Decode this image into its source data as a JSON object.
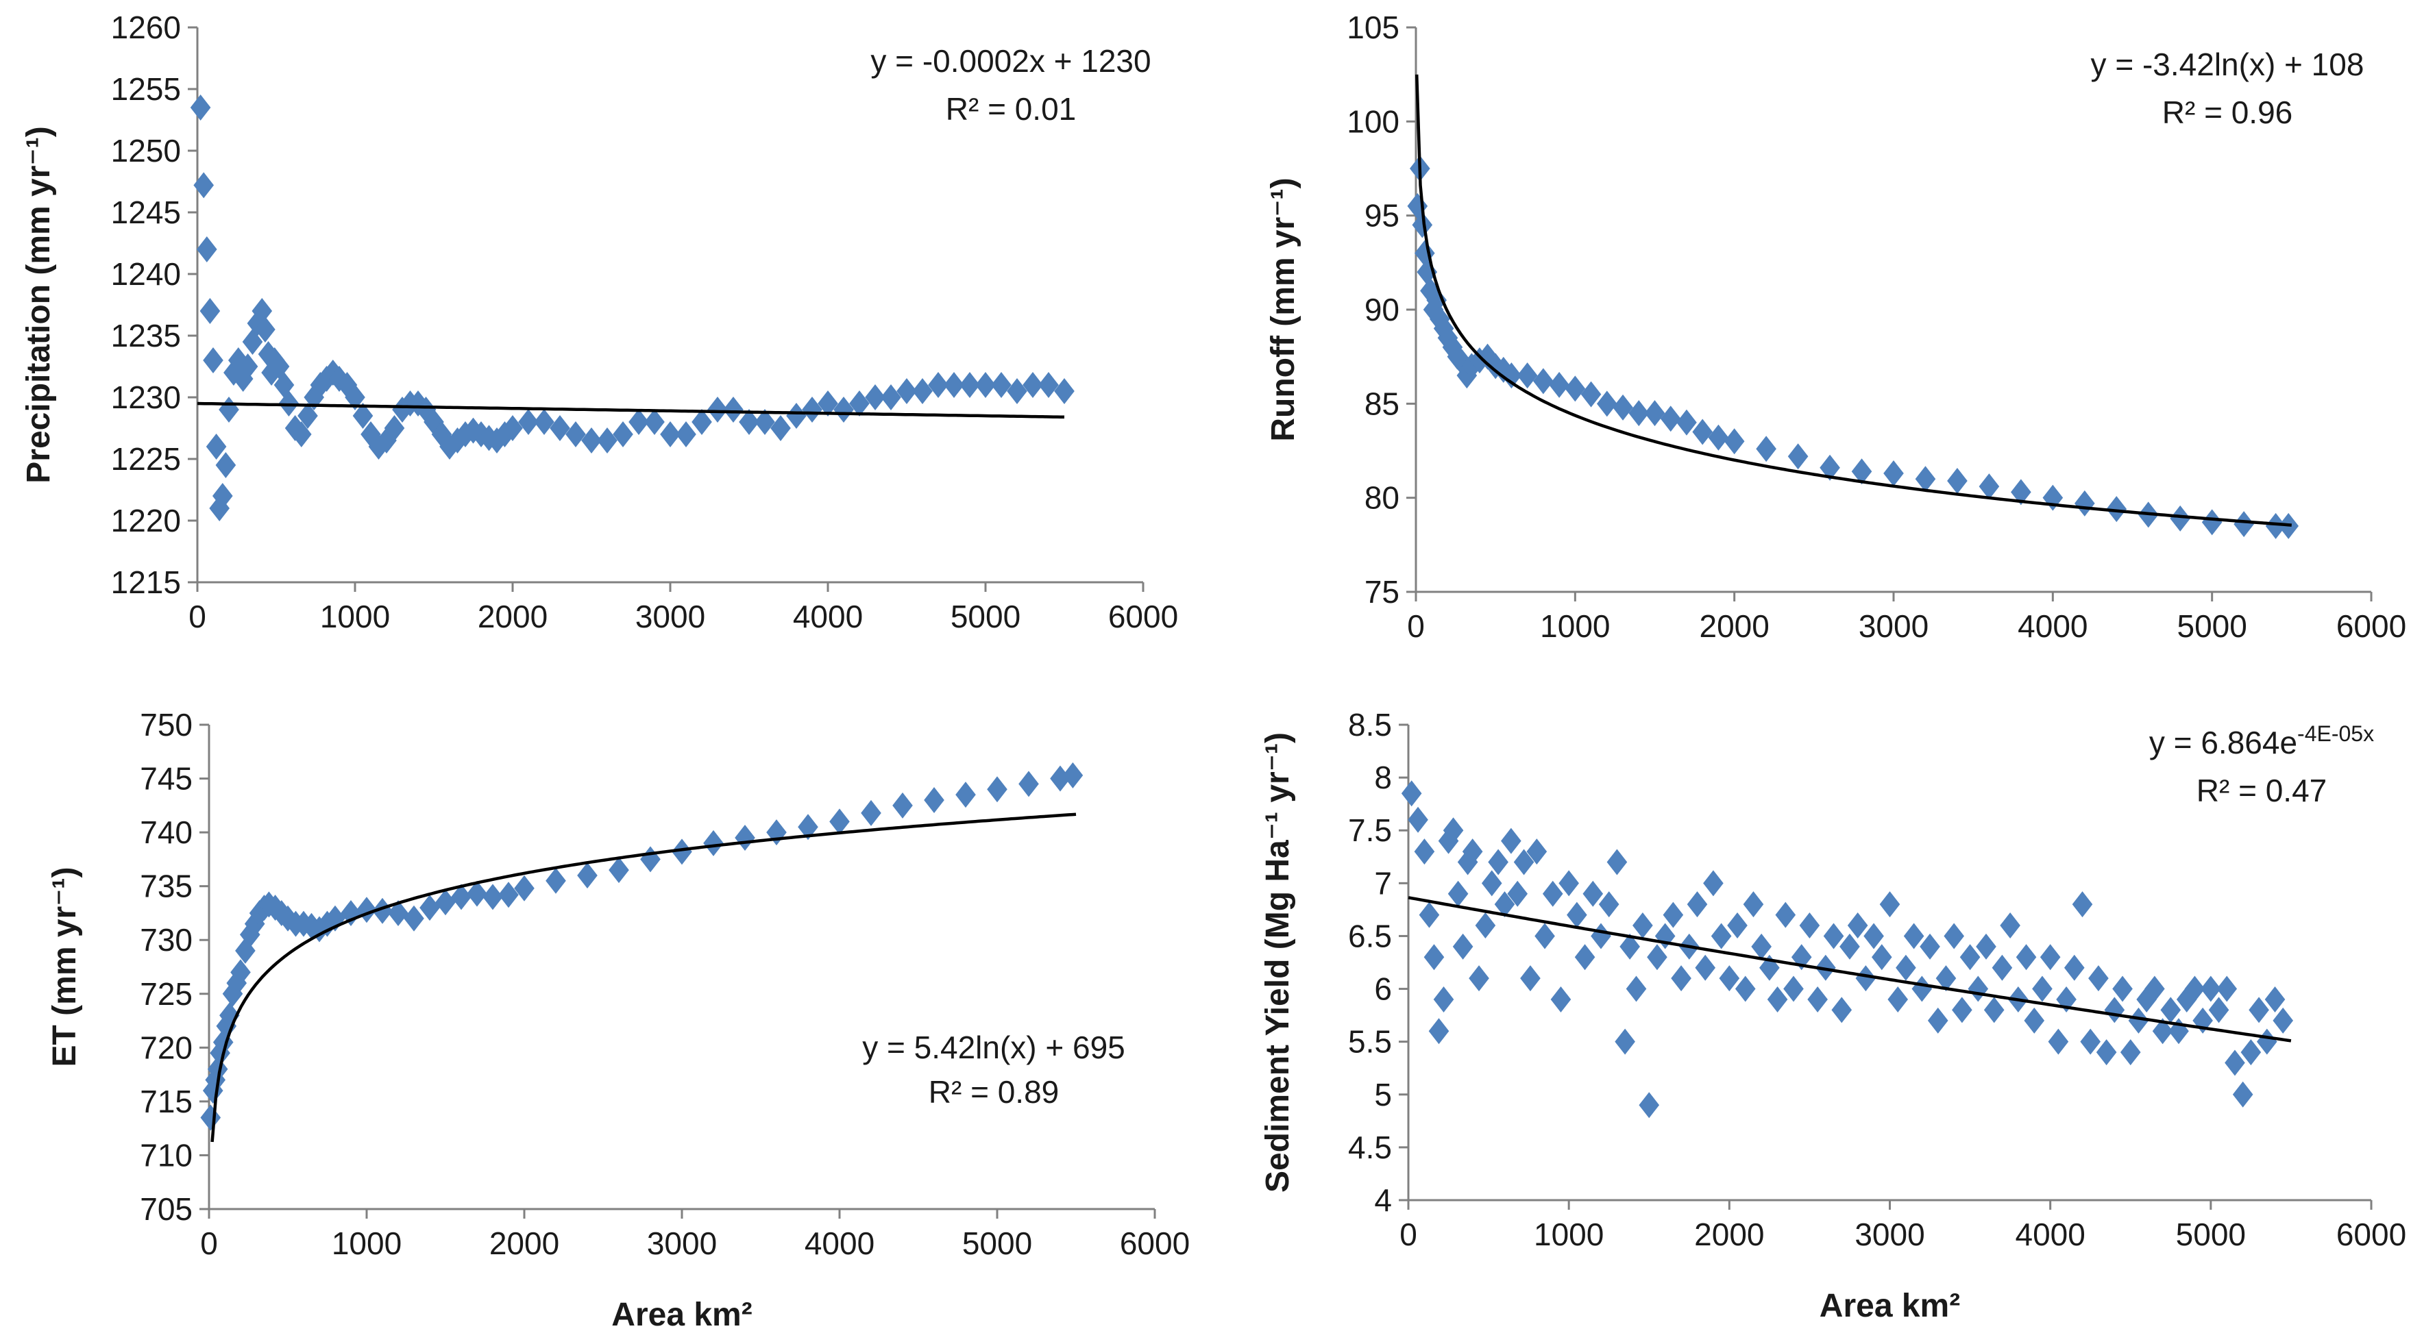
{
  "figure": {
    "bottom_xlabel": "Area km²",
    "marker_color": "#4f81bd",
    "trend_color": "#000000",
    "axis_color": "#808080"
  },
  "chart_data": [
    {
      "id": "precip",
      "type": "scatter",
      "title": "",
      "ylabel": "Precipitation (mm yr⁻¹)",
      "xlabel": "",
      "xlim": [
        0,
        6000
      ],
      "ylim": [
        1215,
        1260
      ],
      "xticks": [
        "0",
        "1000",
        "2000",
        "3000",
        "4000",
        "5000",
        "6000"
      ],
      "yticks": [
        "1215",
        "1220",
        "1225",
        "1230",
        "1235",
        "1240",
        "1245",
        "1250",
        "1255",
        "1260"
      ],
      "equation": "y = -0.0002x + 1230",
      "r_squared": "R² = 0.01",
      "trendline": {
        "kind": "linear",
        "a": -0.0002,
        "b": 1230,
        "x_range": [
          0,
          5500
        ],
        "y_start": 1229.5
      },
      "series": {
        "name": "Precipitation",
        "x": [
          20,
          40,
          60,
          80,
          100,
          120,
          140,
          160,
          180,
          200,
          230,
          260,
          290,
          320,
          350,
          380,
          410,
          430,
          450,
          470,
          490,
          520,
          550,
          580,
          620,
          660,
          700,
          740,
          780,
          820,
          860,
          900,
          950,
          1000,
          1050,
          1100,
          1150,
          1200,
          1250,
          1300,
          1350,
          1400,
          1450,
          1500,
          1550,
          1600,
          1650,
          1700,
          1750,
          1800,
          1850,
          1900,
          1950,
          2000,
          2100,
          2200,
          2300,
          2400,
          2500,
          2600,
          2700,
          2800,
          2900,
          3000,
          3100,
          3200,
          3300,
          3400,
          3500,
          3600,
          3700,
          3800,
          3900,
          4000,
          4100,
          4200,
          4300,
          4400,
          4500,
          4600,
          4700,
          4800,
          4900,
          5000,
          5100,
          5200,
          5300,
          5400,
          5500
        ],
        "y": [
          1253.5,
          1247.2,
          1242,
          1237,
          1233,
          1226,
          1221,
          1222,
          1224.5,
          1229,
          1232,
          1233,
          1231.5,
          1232.5,
          1234.5,
          1236,
          1237,
          1235.5,
          1233.5,
          1232,
          1233,
          1232.5,
          1231,
          1229.5,
          1227.5,
          1227,
          1228.5,
          1230,
          1231,
          1231.5,
          1232,
          1231.5,
          1231,
          1230,
          1228.5,
          1227,
          1226,
          1226.5,
          1227.5,
          1229,
          1229.5,
          1229.5,
          1229,
          1228,
          1227,
          1226,
          1226.5,
          1227,
          1227.3,
          1227,
          1226.7,
          1226.5,
          1227,
          1227.5,
          1228,
          1228,
          1227.5,
          1227,
          1226.5,
          1226.5,
          1227,
          1228,
          1228,
          1227,
          1227,
          1228,
          1229,
          1229,
          1228,
          1228,
          1227.5,
          1228.5,
          1229,
          1229.5,
          1229,
          1229.5,
          1230,
          1230,
          1230.5,
          1230.5,
          1231,
          1231,
          1231,
          1231,
          1231,
          1230.5,
          1231,
          1231,
          1230.5
        ]
      }
    },
    {
      "id": "runoff",
      "type": "scatter",
      "title": "",
      "ylabel": "Runoff (mm yr⁻¹)",
      "xlabel": "",
      "xlim": [
        0,
        6000
      ],
      "ylim": [
        75,
        105
      ],
      "xticks": [
        "0",
        "1000",
        "2000",
        "3000",
        "4000",
        "5000",
        "6000"
      ],
      "yticks": [
        "75",
        "80",
        "85",
        "90",
        "95",
        "100",
        "105"
      ],
      "equation": "y = -3.42ln(x) + 108",
      "r_squared": "R² = 0.96",
      "trendline": {
        "kind": "log",
        "a": -3.42,
        "b": 108,
        "x_range": [
          5,
          5500
        ]
      },
      "series": {
        "name": "Runoff",
        "x": [
          10,
          25,
          40,
          55,
          70,
          90,
          110,
          130,
          150,
          175,
          200,
          230,
          260,
          290,
          320,
          350,
          400,
          450,
          500,
          550,
          600,
          700,
          800,
          900,
          1000,
          1100,
          1200,
          1300,
          1400,
          1500,
          1600,
          1700,
          1800,
          1900,
          2000,
          2200,
          2400,
          2600,
          2800,
          3000,
          3200,
          3400,
          3600,
          3800,
          4000,
          4200,
          4400,
          4600,
          4800,
          5000,
          5200,
          5400,
          5480
        ],
        "y": [
          95.5,
          97.5,
          94.5,
          93,
          92,
          91,
          90,
          90.5,
          89.5,
          89,
          88.5,
          88,
          87.5,
          87.2,
          86.5,
          87,
          87.3,
          87.5,
          87,
          86.8,
          86.5,
          86.5,
          86.2,
          86,
          85.8,
          85.5,
          85,
          84.8,
          84.5,
          84.5,
          84.2,
          84,
          83.5,
          83.2,
          83,
          82.6,
          82.2,
          81.6,
          81.4,
          81.3,
          81,
          80.9,
          80.6,
          80.3,
          80,
          79.7,
          79.4,
          79.1,
          78.9,
          78.7,
          78.6,
          78.5,
          78.5
        ]
      }
    },
    {
      "id": "et",
      "type": "scatter",
      "title": "",
      "ylabel": "ET (mm yr⁻¹)",
      "xlabel": "Area km²",
      "xlim": [
        0,
        6000
      ],
      "ylim": [
        705,
        750
      ],
      "xticks": [
        "0",
        "1000",
        "2000",
        "3000",
        "4000",
        "5000",
        "6000"
      ],
      "yticks": [
        "705",
        "710",
        "715",
        "720",
        "725",
        "730",
        "735",
        "740",
        "745",
        "750"
      ],
      "equation": "y = 5.42ln(x) + 695",
      "r_squared": "R² = 0.89",
      "trendline": {
        "kind": "log",
        "a": 5.42,
        "b": 695,
        "x_range": [
          20,
          5500
        ]
      },
      "series": {
        "name": "ET",
        "x": [
          10,
          25,
          40,
          55,
          70,
          90,
          110,
          130,
          150,
          175,
          200,
          230,
          260,
          290,
          320,
          350,
          380,
          420,
          460,
          500,
          550,
          600,
          650,
          700,
          750,
          800,
          900,
          1000,
          1100,
          1200,
          1300,
          1400,
          1500,
          1600,
          1700,
          1800,
          1900,
          2000,
          2200,
          2400,
          2600,
          2800,
          3000,
          3200,
          3400,
          3600,
          3800,
          4000,
          4200,
          4400,
          4600,
          4800,
          5000,
          5200,
          5400,
          5480
        ],
        "y": [
          713.5,
          716,
          717,
          718,
          719.5,
          720.5,
          722,
          723,
          725,
          726,
          727,
          729,
          730.5,
          731.5,
          732.5,
          733,
          733.3,
          733,
          732.5,
          732,
          731.5,
          731.5,
          731.3,
          731,
          731.5,
          732,
          732.5,
          732.8,
          732.7,
          732.5,
          732,
          733,
          733.5,
          734,
          734.3,
          734,
          734.2,
          734.8,
          735.5,
          736,
          736.5,
          737.5,
          738.2,
          739,
          739.5,
          740,
          740.5,
          741,
          741.8,
          742.5,
          743,
          743.5,
          744,
          744.5,
          745,
          745.3
        ]
      }
    },
    {
      "id": "sediment",
      "type": "scatter",
      "title": "",
      "ylabel": "Sediment Yield (Mg Ha⁻¹ yr⁻¹)",
      "xlabel": "Area km²",
      "xlim": [
        0,
        6000
      ],
      "ylim": [
        4,
        8.5
      ],
      "xticks": [
        "0",
        "1000",
        "2000",
        "3000",
        "4000",
        "5000",
        "6000"
      ],
      "yticks": [
        "4",
        "4.5",
        "5",
        "5.5",
        "6",
        "6.5",
        "7",
        "7.5",
        "8",
        "8.5"
      ],
      "equation": "y = 6.864e",
      "equation_exponent": "-4E-05x",
      "r_squared": "R² = 0.47",
      "trendline": {
        "kind": "exp",
        "a": 6.864,
        "b": -4e-05,
        "x_range": [
          0,
          5500
        ]
      },
      "series": {
        "name": "Sediment Yield",
        "x": [
          20,
          60,
          100,
          130,
          160,
          190,
          220,
          250,
          280,
          310,
          340,
          370,
          400,
          440,
          480,
          520,
          560,
          600,
          640,
          680,
          720,
          760,
          800,
          850,
          900,
          950,
          1000,
          1050,
          1100,
          1150,
          1200,
          1250,
          1300,
          1350,
          1380,
          1420,
          1460,
          1500,
          1550,
          1600,
          1650,
          1700,
          1750,
          1800,
          1850,
          1900,
          1950,
          2000,
          2050,
          2100,
          2150,
          2200,
          2250,
          2300,
          2350,
          2400,
          2450,
          2500,
          2550,
          2600,
          2650,
          2700,
          2750,
          2800,
          2850,
          2900,
          2950,
          3000,
          3050,
          3100,
          3150,
          3200,
          3250,
          3300,
          3350,
          3400,
          3450,
          3500,
          3550,
          3600,
          3650,
          3700,
          3750,
          3800,
          3850,
          3900,
          3950,
          4000,
          4050,
          4100,
          4150,
          4200,
          4250,
          4300,
          4350,
          4400,
          4450,
          4500,
          4550,
          4600,
          4650,
          4700,
          4750,
          4800,
          4850,
          4900,
          4950,
          5000,
          5050,
          5100,
          5150,
          5200,
          5250,
          5300,
          5350,
          5400,
          5450
        ],
        "y": [
          7.85,
          7.6,
          7.3,
          6.7,
          6.3,
          5.6,
          5.9,
          7.4,
          7.5,
          6.9,
          6.4,
          7.2,
          7.3,
          6.1,
          6.6,
          7.0,
          7.2,
          6.8,
          7.4,
          6.9,
          7.2,
          6.1,
          7.3,
          6.5,
          6.9,
          5.9,
          7.0,
          6.7,
          6.3,
          6.9,
          6.5,
          6.8,
          7.2,
          5.5,
          6.4,
          6.0,
          6.6,
          4.9,
          6.3,
          6.5,
          6.7,
          6.1,
          6.4,
          6.8,
          6.2,
          7.0,
          6.5,
          6.1,
          6.6,
          6.0,
          6.8,
          6.4,
          6.2,
          5.9,
          6.7,
          6.0,
          6.3,
          6.6,
          5.9,
          6.2,
          6.5,
          5.8,
          6.4,
          6.6,
          6.1,
          6.5,
          6.3,
          6.8,
          5.9,
          6.2,
          6.5,
          6.0,
          6.4,
          5.7,
          6.1,
          6.5,
          5.8,
          6.3,
          6.0,
          6.4,
          5.8,
          6.2,
          6.6,
          5.9,
          6.3,
          5.7,
          6.0,
          6.3,
          5.5,
          5.9,
          6.2,
          6.8,
          5.5,
          6.1,
          5.4,
          5.8,
          6.0,
          5.4,
          5.7,
          5.9,
          6.0,
          5.6,
          5.8,
          5.6,
          5.9,
          6.0,
          5.7,
          6.0,
          5.8,
          6.0,
          5.3,
          5.0,
          5.4,
          5.8,
          5.5,
          5.9,
          5.7
        ]
      }
    }
  ]
}
